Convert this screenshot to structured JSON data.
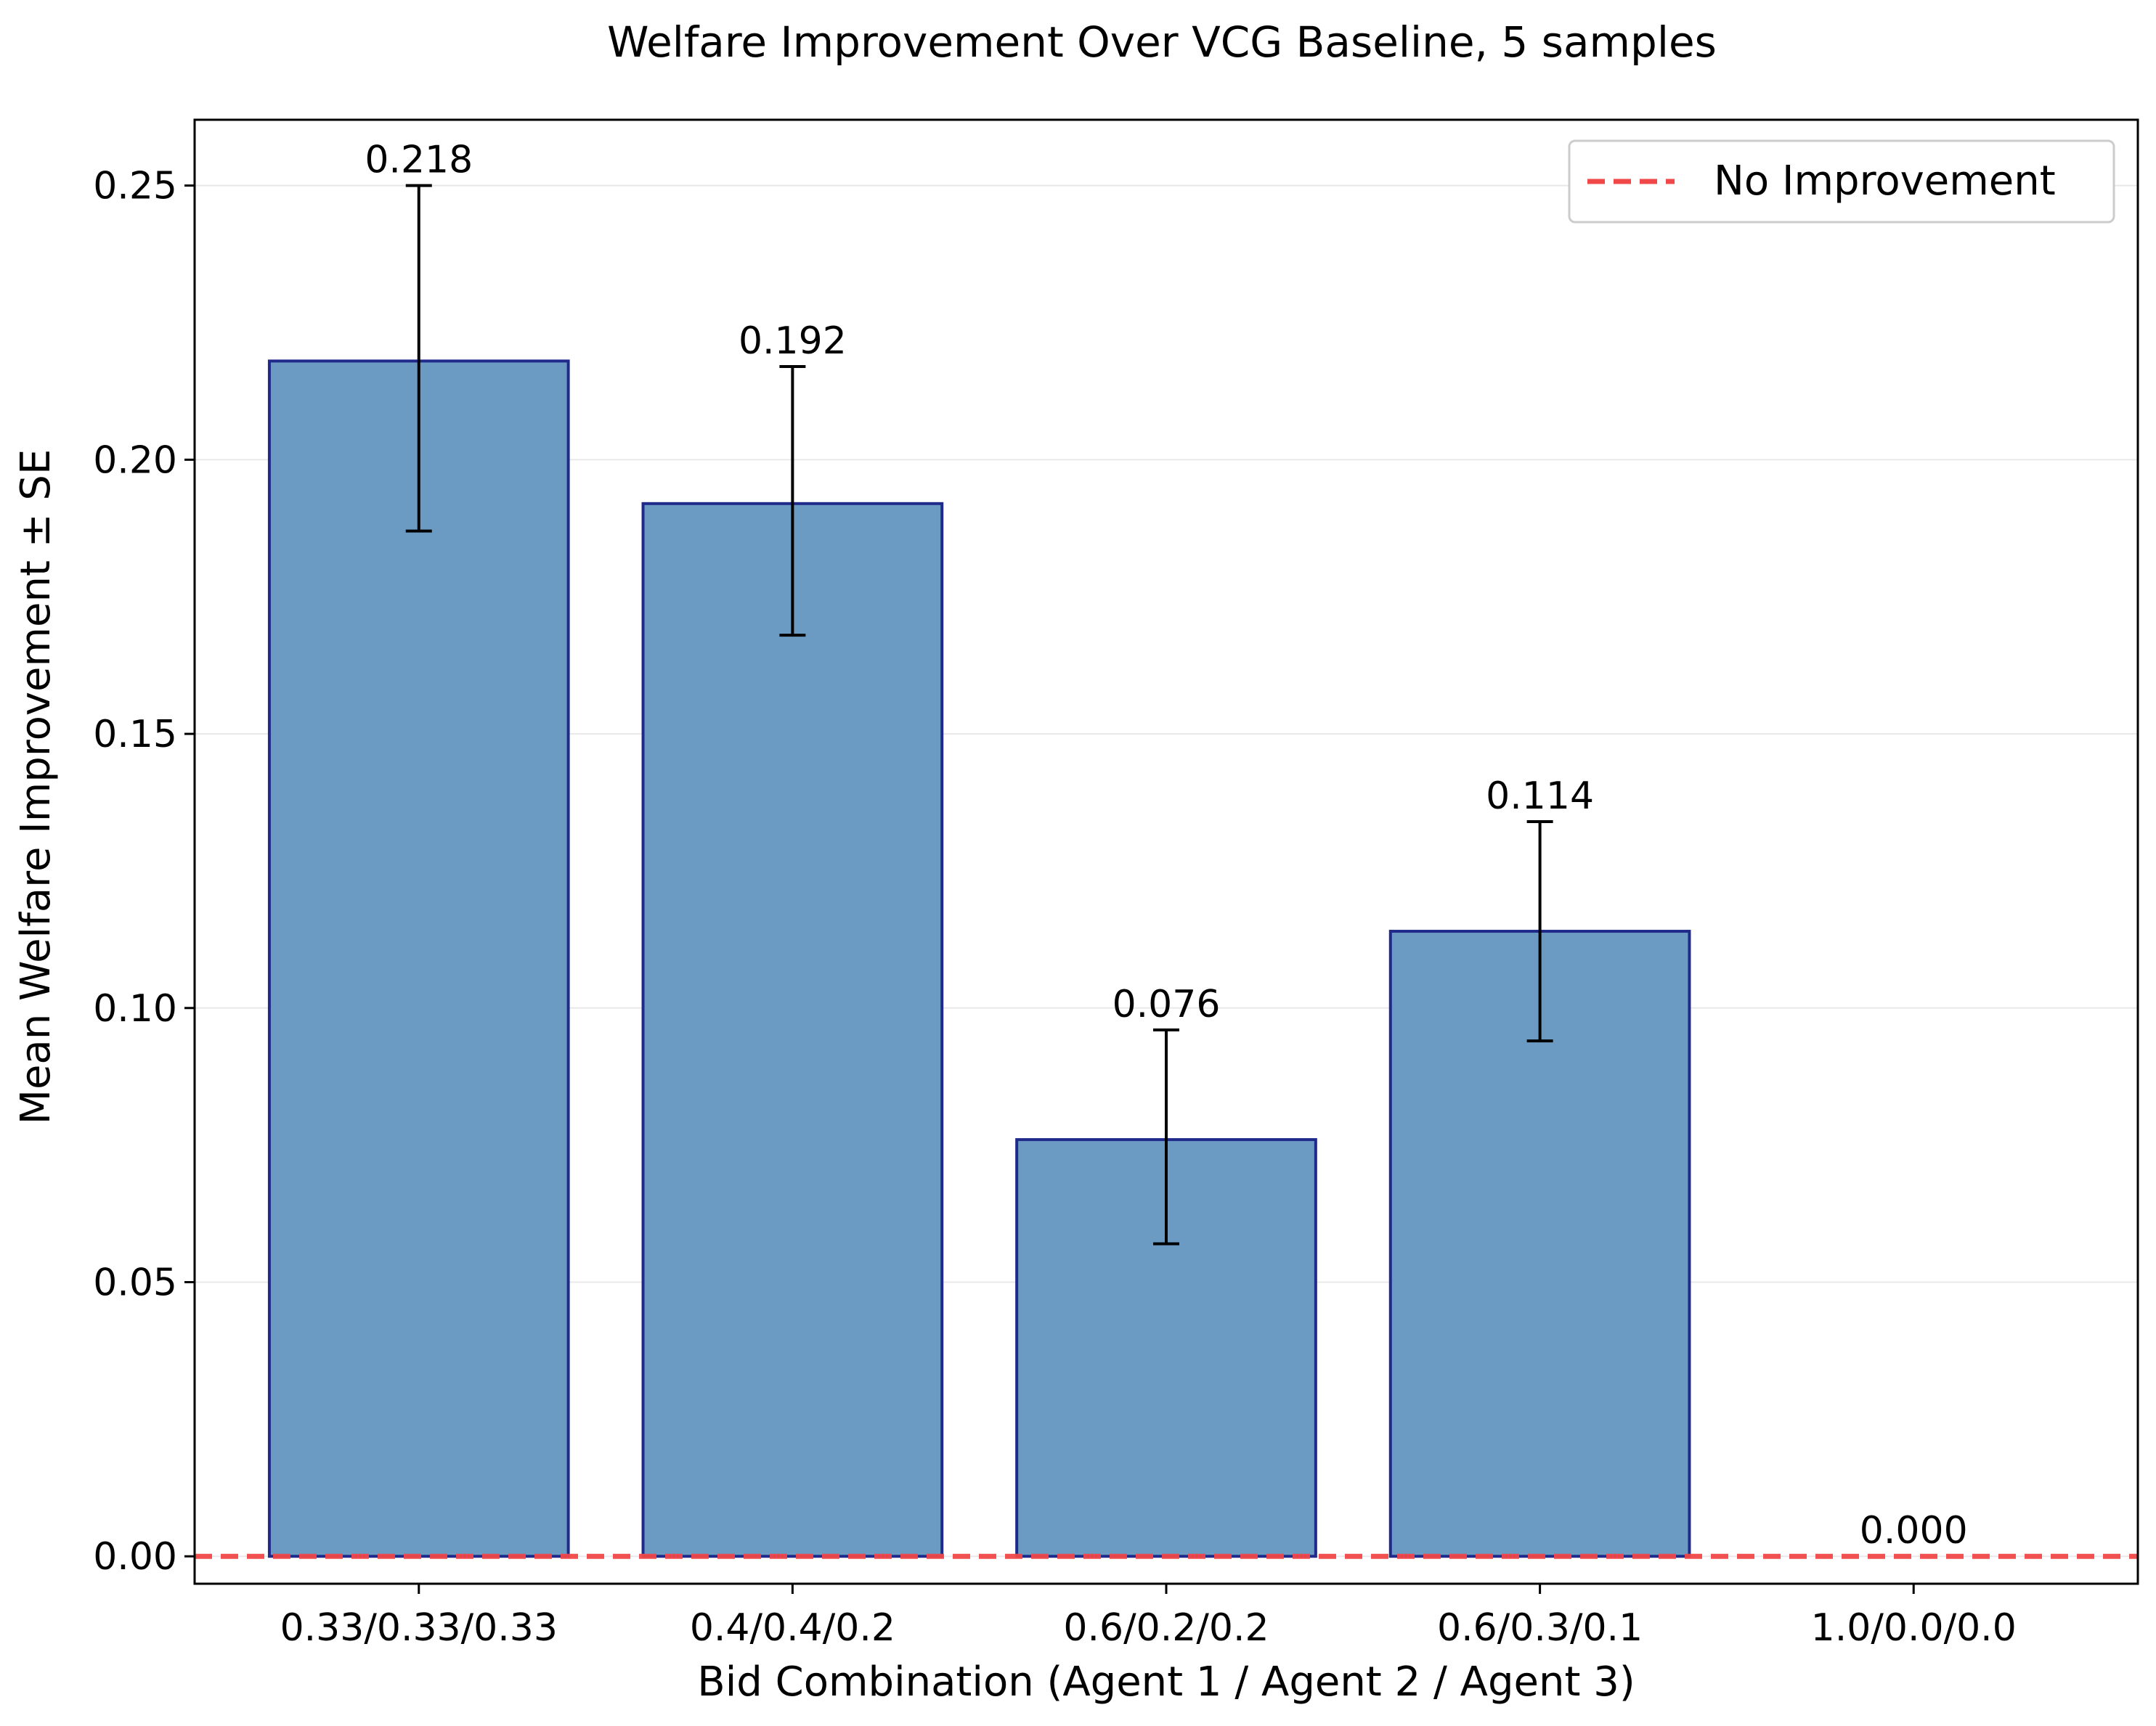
{
  "chart_data": {
    "type": "bar",
    "title": "Welfare Improvement Over VCG Baseline, 5 samples",
    "xlabel": "Bid Combination (Agent 1 / Agent 2 / Agent 3)",
    "ylabel": "Mean Welfare Improvement ± SE",
    "categories": [
      "0.33/0.33/0.33",
      "0.4/0.4/0.2",
      "0.6/0.2/0.2",
      "0.6/0.3/0.1",
      "1.0/0.0/0.0"
    ],
    "values": [
      0.218,
      0.192,
      0.076,
      0.114,
      0.0
    ],
    "value_labels": [
      "0.218",
      "0.192",
      "0.076",
      "0.114",
      "0.000"
    ],
    "error_low": [
      0.187,
      0.168,
      0.057,
      0.094,
      0.0
    ],
    "error_high": [
      0.25,
      0.217,
      0.096,
      0.134,
      0.0
    ],
    "ylim": [
      -0.005,
      0.262
    ],
    "yticks": [
      0.0,
      0.05,
      0.1,
      0.15,
      0.2,
      0.25
    ],
    "ytick_labels": [
      "0.00",
      "0.05",
      "0.10",
      "0.15",
      "0.20",
      "0.25"
    ],
    "grid": "horizontal",
    "reference_line": {
      "value": 0.0,
      "style": "dashed",
      "label": "No Improvement"
    },
    "legend": {
      "placement": "top-right",
      "entries": [
        "No Improvement"
      ]
    },
    "colors": {
      "bar_fill": "#6b9bc3",
      "bar_edge": "#1f2a8a",
      "error_bar": "#000000",
      "reference_line": "#f04848",
      "grid": "#e8e8e8"
    }
  }
}
